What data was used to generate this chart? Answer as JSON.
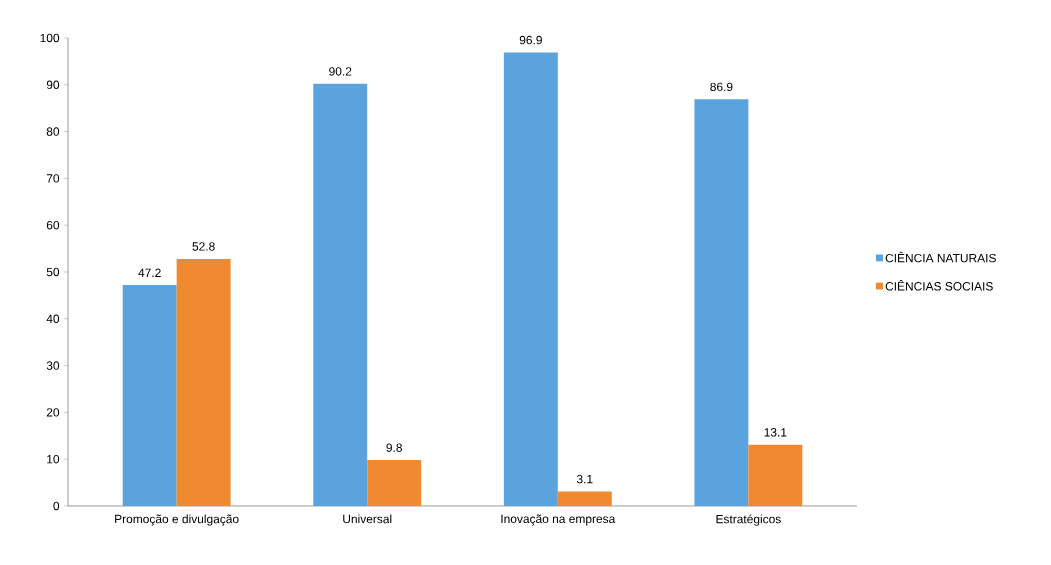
{
  "chart_data": {
    "type": "bar",
    "categories": [
      "Promoção e divulgação",
      "Universal",
      "Inovação na empresa",
      "Estratégicos"
    ],
    "series": [
      {
        "name": "CIÊNCIA NATURAIS",
        "color": "#5ba3dc",
        "values": [
          47.2,
          90.2,
          96.9,
          86.9
        ]
      },
      {
        "name": "CIÊNCIAS SOCIAIS",
        "color": "#f08a30",
        "values": [
          52.8,
          9.8,
          3.1,
          13.1
        ]
      }
    ],
    "ylim": [
      0,
      100
    ],
    "yticks": [
      0,
      10,
      20,
      30,
      40,
      50,
      60,
      70,
      80,
      90,
      100
    ],
    "data_labels": true,
    "legend": "right",
    "grid": false
  }
}
